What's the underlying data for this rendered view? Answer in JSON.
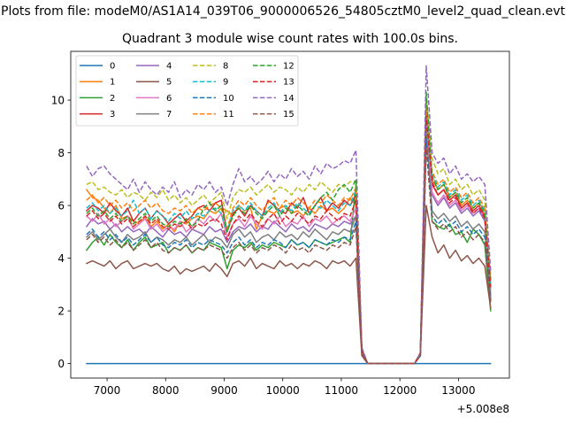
{
  "figure": {
    "suptitle": "Plots from file: modeM0/AS1A14_039T06_9000006526_54805cztM0_level2_quad_clean.evt",
    "offset_text": "+5.008e8"
  },
  "chart_data": {
    "type": "line",
    "title": "Quadrant 3 module wise count rates with 100.0s bins.",
    "xlabel": "",
    "ylabel": "",
    "x_offset": 500800000,
    "xlim": [
      6380,
      13870
    ],
    "ylim": [
      -0.55,
      11.85
    ],
    "xticks": [
      7000,
      8000,
      9000,
      10000,
      11000,
      12000,
      13000
    ],
    "yticks": [
      0,
      2,
      4,
      6,
      8,
      10
    ],
    "grid": false,
    "legend": {
      "placement": "top-left",
      "columns": 4
    },
    "x_start": 6650,
    "x_step": 100,
    "series": [
      {
        "name": "0",
        "color": "#1f77b4",
        "dash": "solid",
        "values": [
          0,
          0,
          0,
          0,
          0,
          0,
          0,
          0,
          0,
          0,
          0,
          0,
          0,
          0,
          0,
          0,
          0,
          0,
          0,
          0,
          0,
          0,
          0,
          0,
          0,
          0,
          0,
          0,
          0,
          0,
          0,
          0,
          0,
          0,
          0,
          0,
          0,
          0,
          0,
          0,
          0,
          0,
          0,
          0,
          0,
          0,
          0,
          0,
          0,
          0,
          0,
          0,
          0,
          0,
          0,
          0,
          0,
          0,
          0,
          0,
          0,
          0,
          0,
          0,
          0,
          0,
          0,
          0,
          0,
          0
        ]
      },
      {
        "name": "1",
        "color": "#ff7f0e",
        "dash": "solid",
        "values": [
          6.6,
          6.3,
          6.2,
          5.9,
          5.7,
          6.0,
          5.5,
          5.6,
          5.4,
          5.3,
          5.6,
          5.2,
          5.4,
          5.1,
          5.3,
          5.0,
          5.4,
          5.3,
          5.5,
          5.6,
          5.5,
          5.8,
          5.7,
          5.9,
          5.8,
          5.6,
          6.0,
          5.8,
          5.9,
          5.1,
          5.6,
          5.8,
          5.7,
          5.9,
          6.0,
          5.7,
          5.8,
          5.6,
          5.9,
          5.7,
          6.0,
          5.8,
          5.9,
          5.7,
          5.9,
          6.3,
          6.0,
          0.5,
          0,
          0,
          0,
          0,
          0,
          0,
          0,
          0,
          0,
          0.4,
          9.5,
          7.0,
          6.6,
          6.8,
          6.3,
          6.5,
          6.0,
          6.2,
          5.9,
          6.1,
          5.8,
          2.4
        ]
      },
      {
        "name": "2",
        "color": "#2ca02c",
        "dash": "solid",
        "values": [
          4.3,
          4.6,
          4.8,
          4.5,
          4.9,
          4.6,
          4.4,
          4.7,
          4.3,
          4.6,
          4.8,
          4.4,
          4.5,
          4.6,
          4.2,
          4.4,
          4.3,
          4.5,
          4.2,
          4.4,
          4.3,
          4.6,
          4.5,
          4.4,
          3.6,
          4.3,
          4.5,
          4.4,
          4.6,
          4.3,
          4.5,
          4.4,
          4.6,
          4.5,
          4.4,
          4.7,
          4.5,
          4.6,
          4.4,
          4.7,
          4.6,
          4.5,
          4.6,
          4.7,
          4.8,
          4.6,
          6.8,
          0.4,
          0,
          0,
          0,
          0,
          0,
          0,
          0,
          0,
          0,
          0.3,
          10.0,
          5.4,
          5.2,
          5.1,
          5.3,
          4.9,
          5.0,
          4.6,
          5.1,
          4.9,
          4.5,
          2.0
        ]
      },
      {
        "name": "3",
        "color": "#d62728",
        "dash": "solid",
        "values": [
          5.8,
          6.0,
          5.9,
          5.7,
          6.1,
          5.8,
          5.6,
          5.9,
          5.4,
          5.7,
          5.9,
          5.5,
          5.8,
          5.6,
          5.3,
          5.5,
          5.7,
          5.4,
          5.6,
          5.9,
          6.0,
          5.8,
          6.1,
          6.2,
          5.0,
          5.7,
          5.9,
          5.6,
          6.0,
          5.8,
          5.6,
          6.2,
          6.0,
          5.8,
          5.7,
          6.1,
          5.9,
          6.3,
          5.7,
          6.0,
          6.3,
          5.8,
          6.1,
          5.9,
          6.2,
          6.0,
          6.4,
          0.5,
          0,
          0,
          0,
          0,
          0,
          0,
          0,
          0,
          0,
          0.4,
          9.2,
          6.8,
          6.4,
          6.6,
          6.2,
          6.4,
          5.9,
          6.1,
          5.8,
          6.0,
          5.6,
          3.2
        ]
      },
      {
        "name": "4",
        "color": "#9467bd",
        "dash": "solid",
        "values": [
          5.2,
          5.5,
          5.3,
          5.4,
          5.1,
          5.3,
          5.0,
          5.2,
          5.0,
          5.1,
          4.9,
          5.2,
          5.0,
          4.8,
          5.1,
          4.9,
          5.0,
          4.8,
          5.1,
          5.0,
          4.9,
          5.2,
          5.0,
          5.1,
          4.6,
          5.0,
          5.2,
          5.1,
          5.3,
          5.0,
          5.2,
          5.1,
          5.4,
          5.2,
          5.0,
          5.3,
          5.1,
          5.2,
          5.0,
          5.3,
          5.2,
          5.1,
          5.3,
          5.2,
          5.4,
          5.3,
          5.6,
          0.5,
          0,
          0,
          0,
          0,
          0,
          0,
          0,
          0,
          0,
          0.4,
          9.8,
          6.4,
          6.0,
          6.3,
          5.9,
          6.1,
          5.7,
          5.9,
          5.6,
          5.8,
          5.4,
          2.6
        ]
      },
      {
        "name": "5",
        "color": "#8c564b",
        "dash": "solid",
        "values": [
          3.8,
          3.9,
          3.8,
          3.7,
          3.9,
          3.6,
          3.8,
          3.9,
          3.6,
          3.7,
          3.8,
          3.7,
          3.8,
          3.6,
          3.5,
          3.7,
          3.4,
          3.6,
          3.5,
          3.6,
          3.7,
          3.5,
          3.8,
          3.6,
          3.3,
          3.8,
          3.9,
          3.7,
          4.0,
          3.6,
          3.8,
          3.7,
          3.6,
          3.9,
          3.7,
          3.8,
          3.6,
          3.8,
          3.7,
          3.9,
          3.8,
          3.6,
          3.9,
          3.8,
          3.9,
          3.7,
          4.0,
          0.3,
          0,
          0,
          0,
          0,
          0,
          0,
          0,
          0,
          0,
          0.3,
          6.0,
          4.8,
          4.2,
          4.5,
          4.0,
          4.3,
          3.9,
          4.1,
          3.8,
          4.0,
          3.7,
          2.1
        ]
      },
      {
        "name": "6",
        "color": "#e377c2",
        "dash": "solid",
        "values": [
          5.6,
          5.4,
          5.7,
          5.3,
          5.5,
          5.2,
          5.4,
          5.6,
          5.1,
          5.3,
          5.5,
          5.1,
          5.3,
          5.0,
          5.2,
          5.1,
          5.4,
          5.0,
          5.2,
          5.5,
          5.3,
          5.6,
          5.4,
          5.7,
          4.8,
          5.3,
          5.5,
          5.2,
          5.6,
          5.3,
          5.1,
          5.5,
          5.3,
          5.6,
          5.2,
          5.4,
          5.3,
          5.6,
          5.2,
          5.5,
          5.4,
          5.6,
          5.3,
          5.5,
          5.6,
          5.4,
          5.9,
          0.5,
          0,
          0,
          0,
          0,
          0,
          0,
          0,
          0,
          0,
          0.4,
          9.0,
          6.5,
          6.1,
          6.4,
          6.0,
          6.2,
          5.8,
          6.0,
          5.7,
          5.9,
          5.5,
          2.8
        ]
      },
      {
        "name": "7",
        "color": "#7f7f7f",
        "dash": "solid",
        "values": [
          4.8,
          5.0,
          4.7,
          4.9,
          5.1,
          4.8,
          4.6,
          4.9,
          4.7,
          4.8,
          5.0,
          4.6,
          4.8,
          4.7,
          4.5,
          4.7,
          4.6,
          4.8,
          4.5,
          4.7,
          4.9,
          4.6,
          4.8,
          4.7,
          4.4,
          4.9,
          5.1,
          4.8,
          5.0,
          4.6,
          4.8,
          4.9,
          4.7,
          5.0,
          4.8,
          4.9,
          4.7,
          5.0,
          4.8,
          5.1,
          4.9,
          4.7,
          5.0,
          4.9,
          5.1,
          5.0,
          5.6,
          0.5,
          0,
          0,
          0,
          0,
          0,
          0,
          0,
          0,
          0,
          0.4,
          8.8,
          5.8,
          5.5,
          5.7,
          5.4,
          5.6,
          5.2,
          5.4,
          5.1,
          5.3,
          5.0,
          2.5
        ]
      },
      {
        "name": "8",
        "color": "#bcbd22",
        "dash": "dashed",
        "values": [
          6.8,
          6.9,
          6.6,
          6.7,
          6.5,
          6.4,
          6.6,
          6.3,
          6.5,
          6.4,
          6.2,
          6.5,
          6.3,
          6.6,
          6.2,
          6.4,
          6.1,
          6.3,
          6.0,
          6.2,
          6.4,
          6.1,
          6.3,
          6.5,
          5.5,
          6.3,
          6.6,
          6.5,
          6.7,
          6.4,
          6.6,
          6.8,
          6.5,
          6.7,
          6.6,
          6.4,
          6.7,
          6.5,
          6.8,
          6.6,
          6.9,
          6.7,
          6.5,
          6.8,
          6.7,
          6.9,
          6.9,
          0.6,
          0,
          0,
          0,
          0,
          0,
          0,
          0,
          0,
          0,
          0.4,
          10.1,
          7.8,
          7.2,
          7.4,
          6.8,
          7.0,
          6.6,
          6.8,
          6.4,
          6.6,
          6.2,
          3.4
        ]
      },
      {
        "name": "9",
        "color": "#17becf",
        "dash": "dashed",
        "values": [
          5.9,
          6.1,
          5.8,
          6.0,
          5.7,
          5.9,
          5.6,
          5.8,
          6.2,
          5.7,
          5.9,
          5.5,
          5.8,
          5.6,
          5.4,
          5.7,
          5.5,
          5.8,
          5.5,
          5.7,
          5.6,
          5.8,
          5.9,
          5.7,
          5.0,
          5.8,
          6.0,
          5.8,
          6.1,
          5.8,
          5.6,
          5.9,
          6.1,
          5.7,
          6.0,
          5.8,
          6.1,
          5.9,
          5.7,
          6.0,
          5.9,
          6.2,
          6.0,
          5.8,
          6.1,
          6.0,
          6.6,
          0.5,
          0,
          0,
          0,
          0,
          0,
          0,
          0,
          0,
          0,
          0.4,
          9.6,
          7.2,
          6.7,
          6.9,
          6.4,
          6.6,
          6.2,
          6.4,
          6.0,
          6.2,
          5.8,
          3.0
        ]
      },
      {
        "name": "10",
        "color": "#1f77b4",
        "dash": "dashed",
        "values": [
          4.9,
          5.1,
          4.8,
          5.0,
          4.7,
          4.9,
          4.6,
          4.8,
          4.5,
          4.7,
          4.9,
          4.6,
          4.8,
          4.5,
          4.4,
          4.6,
          4.5,
          4.7,
          4.4,
          4.6,
          4.5,
          4.7,
          4.6,
          4.5,
          4.2,
          4.6,
          4.8,
          4.5,
          4.7,
          4.4,
          4.6,
          4.5,
          4.7,
          4.6,
          4.4,
          4.7,
          4.5,
          4.6,
          4.4,
          4.7,
          4.6,
          4.5,
          4.7,
          4.6,
          4.8,
          4.7,
          5.4,
          0.4,
          0,
          0,
          0,
          0,
          0,
          0,
          0,
          0,
          0,
          0.3,
          8.5,
          5.6,
          5.3,
          5.5,
          5.2,
          5.4,
          5.0,
          5.2,
          4.9,
          5.1,
          4.8,
          2.4
        ]
      },
      {
        "name": "11",
        "color": "#ff7f0e",
        "dash": "dashed",
        "values": [
          6.2,
          6.4,
          6.1,
          6.3,
          6.0,
          6.2,
          5.9,
          6.1,
          5.8,
          6.0,
          6.2,
          5.9,
          6.1,
          5.8,
          5.7,
          5.9,
          5.8,
          6.0,
          5.7,
          5.9,
          5.8,
          6.0,
          6.1,
          5.9,
          5.1,
          5.9,
          6.2,
          6.0,
          6.3,
          6.0,
          5.8,
          6.1,
          6.3,
          5.9,
          6.2,
          6.0,
          6.3,
          6.1,
          5.9,
          6.2,
          6.1,
          6.4,
          6.2,
          6.0,
          6.3,
          6.2,
          6.7,
          0.5,
          0,
          0,
          0,
          0,
          0,
          0,
          0,
          0,
          0,
          0.4,
          9.7,
          7.3,
          6.8,
          7.0,
          6.5,
          6.7,
          6.3,
          6.5,
          6.1,
          6.3,
          5.9,
          3.1
        ]
      },
      {
        "name": "12",
        "color": "#2ca02c",
        "dash": "dashed",
        "values": [
          5.7,
          5.9,
          5.6,
          5.8,
          5.5,
          5.7,
          5.4,
          5.6,
          5.3,
          5.5,
          5.7,
          5.4,
          5.6,
          5.3,
          5.2,
          5.4,
          5.3,
          5.5,
          5.2,
          5.4,
          5.9,
          6.1,
          5.8,
          6.0,
          5.0,
          5.6,
          5.9,
          5.7,
          6.0,
          5.7,
          5.5,
          5.8,
          6.0,
          5.6,
          5.9,
          5.7,
          6.0,
          5.8,
          5.6,
          6.0,
          6.3,
          6.5,
          6.2,
          6.6,
          6.8,
          6.5,
          7.0,
          0.6,
          0,
          0,
          0,
          0,
          0,
          0,
          0,
          0,
          0,
          0.4,
          10.3,
          7.1,
          6.6,
          6.8,
          6.3,
          6.5,
          6.1,
          6.3,
          5.9,
          6.1,
          5.7,
          3.0
        ]
      },
      {
        "name": "13",
        "color": "#d62728",
        "dash": "dashed",
        "values": [
          5.6,
          5.8,
          5.5,
          5.7,
          5.4,
          5.6,
          5.3,
          5.5,
          5.2,
          5.4,
          5.6,
          5.3,
          5.5,
          5.2,
          5.1,
          5.3,
          5.2,
          5.4,
          5.1,
          5.3,
          5.2,
          5.4,
          5.5,
          5.3,
          4.7,
          5.3,
          5.6,
          5.4,
          5.7,
          5.4,
          5.2,
          5.5,
          5.7,
          5.3,
          5.6,
          5.4,
          5.7,
          5.5,
          5.3,
          5.6,
          5.5,
          5.8,
          5.6,
          5.4,
          5.7,
          5.6,
          6.2,
          0.5,
          0,
          0,
          0,
          0,
          0,
          0,
          0,
          0,
          0,
          0.4,
          9.4,
          6.9,
          6.4,
          6.6,
          6.1,
          6.3,
          5.9,
          6.1,
          5.7,
          5.9,
          5.5,
          2.9
        ]
      },
      {
        "name": "14",
        "color": "#9467bd",
        "dash": "dashed",
        "values": [
          7.5,
          7.1,
          7.4,
          7.5,
          7.2,
          7.0,
          6.8,
          6.6,
          7.0,
          6.5,
          6.9,
          6.6,
          6.4,
          6.7,
          6.5,
          6.9,
          6.3,
          6.6,
          6.4,
          6.8,
          6.6,
          6.9,
          6.5,
          6.7,
          6.0,
          6.8,
          7.4,
          6.9,
          7.1,
          6.8,
          7.0,
          7.3,
          6.9,
          7.2,
          7.0,
          7.4,
          7.1,
          7.3,
          7.0,
          7.5,
          7.2,
          7.6,
          7.4,
          7.5,
          7.7,
          7.6,
          8.1,
          0.6,
          0,
          0,
          0,
          0,
          0,
          0,
          0,
          0,
          0,
          0.4,
          11.3,
          8.0,
          7.6,
          7.8,
          7.2,
          7.5,
          7.0,
          7.2,
          6.9,
          7.1,
          6.8,
          3.5
        ]
      },
      {
        "name": "15",
        "color": "#8c564b",
        "dash": "dashed",
        "values": [
          4.7,
          4.9,
          4.6,
          4.8,
          4.5,
          4.7,
          4.4,
          4.6,
          4.3,
          4.5,
          4.7,
          4.4,
          4.6,
          4.3,
          4.2,
          4.4,
          4.3,
          4.5,
          4.2,
          4.4,
          4.3,
          4.5,
          4.4,
          4.3,
          4.0,
          4.4,
          4.6,
          4.3,
          4.5,
          4.2,
          4.4,
          4.3,
          4.5,
          4.4,
          4.2,
          4.5,
          4.3,
          4.4,
          4.2,
          4.5,
          4.4,
          4.3,
          4.5,
          4.4,
          4.6,
          4.5,
          5.2,
          0.4,
          0,
          0,
          0,
          0,
          0,
          0,
          0,
          0,
          0,
          0.3,
          8.2,
          5.4,
          5.1,
          5.3,
          5.0,
          5.2,
          4.8,
          5.0,
          4.7,
          4.9,
          4.6,
          2.3
        ]
      }
    ]
  }
}
